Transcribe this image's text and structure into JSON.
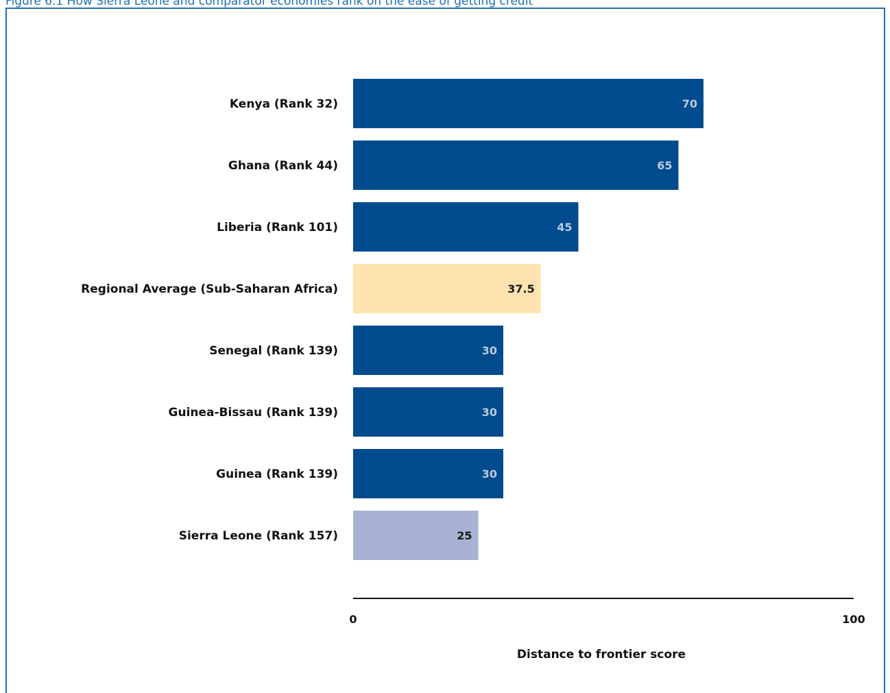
{
  "figure_title": "Figure 6.1 How Sierra Leone and comparator economies rank on the ease of getting credit",
  "colors": {
    "title": "#1f6fb6",
    "frame": "#1f6fb6",
    "default_bar": "#004b8d",
    "regional_bar": "#fde3b0",
    "target_bar": "#a6b1d3",
    "light_value": "#b9c9e2",
    "dark_value": "#1a1a1a",
    "axis": "#111111"
  },
  "chart_data": {
    "type": "bar",
    "orientation": "horizontal",
    "categories": [
      "Kenya (Rank 32)",
      "Ghana (Rank 44)",
      "Liberia (Rank 101)",
      "Regional Average (Sub-Saharan Africa)",
      "Senegal (Rank 139)",
      "Guinea-Bissau (Rank 139)",
      "Guinea (Rank 139)",
      "Sierra Leone (Rank 157)"
    ],
    "values": [
      70,
      65,
      45,
      37.5,
      30,
      30,
      30,
      25
    ],
    "value_labels": [
      "70",
      "65",
      "45",
      "37.5",
      "30",
      "30",
      "30",
      "25"
    ],
    "bar_styles": [
      "default",
      "default",
      "default",
      "regional",
      "default",
      "default",
      "default",
      "target"
    ],
    "xlabel": "Distance to frontier score",
    "ylabel": "",
    "xlim": [
      0,
      100
    ],
    "x_ticks": [
      "0",
      "100"
    ],
    "grid": false,
    "legend": "none"
  }
}
